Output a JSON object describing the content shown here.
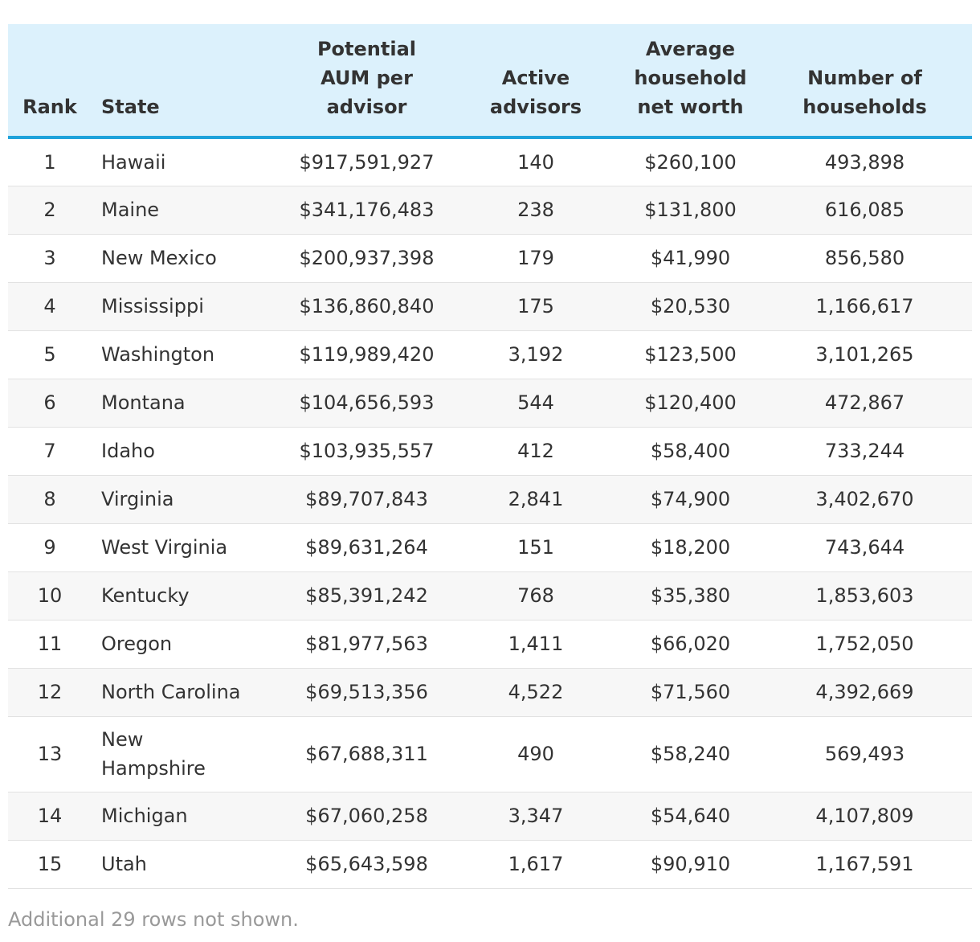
{
  "chart_data": {
    "type": "table",
    "columns": [
      "Rank",
      "State",
      "Potential\nAUM per\nadvisor",
      "Active\nadvisors",
      "Average\nhousehold\nnet worth",
      "Number of\nhouseholds"
    ],
    "rows": [
      [
        "1",
        "Hawaii",
        "$917,591,927",
        "140",
        "$260,100",
        "493,898"
      ],
      [
        "2",
        "Maine",
        "$341,176,483",
        "238",
        "$131,800",
        "616,085"
      ],
      [
        "3",
        "New Mexico",
        "$200,937,398",
        "179",
        "$41,990",
        "856,580"
      ],
      [
        "4",
        "Mississippi",
        "$136,860,840",
        "175",
        "$20,530",
        "1,166,617"
      ],
      [
        "5",
        "Washington",
        "$119,989,420",
        "3,192",
        "$123,500",
        "3,101,265"
      ],
      [
        "6",
        "Montana",
        "$104,656,593",
        "544",
        "$120,400",
        "472,867"
      ],
      [
        "7",
        "Idaho",
        "$103,935,557",
        "412",
        "$58,400",
        "733,244"
      ],
      [
        "8",
        "Virginia",
        "$89,707,843",
        "2,841",
        "$74,900",
        "3,402,670"
      ],
      [
        "9",
        "West Virginia",
        "$89,631,264",
        "151",
        "$18,200",
        "743,644"
      ],
      [
        "10",
        "Kentucky",
        "$85,391,242",
        "768",
        "$35,380",
        "1,853,603"
      ],
      [
        "11",
        "Oregon",
        "$81,977,563",
        "1,411",
        "$66,020",
        "1,752,050"
      ],
      [
        "12",
        "North Carolina",
        "$69,513,356",
        "4,522",
        "$71,560",
        "4,392,669"
      ],
      [
        "13",
        "New\nHampshire",
        "$67,688,311",
        "490",
        "$58,240",
        "569,493"
      ],
      [
        "14",
        "Michigan",
        "$67,060,258",
        "3,347",
        "$54,640",
        "4,107,809"
      ],
      [
        "15",
        "Utah",
        "$65,643,598",
        "1,617",
        "$90,910",
        "1,167,591"
      ]
    ],
    "footnote": "Additional 29 rows not shown."
  },
  "colors": {
    "header_background": "#dcf1fc",
    "header_rule": "#1fa3db",
    "row_stripe": "#f7f7f7",
    "row_divider": "#e2e2e2",
    "text": "#333333",
    "footnote_text": "#999999"
  }
}
